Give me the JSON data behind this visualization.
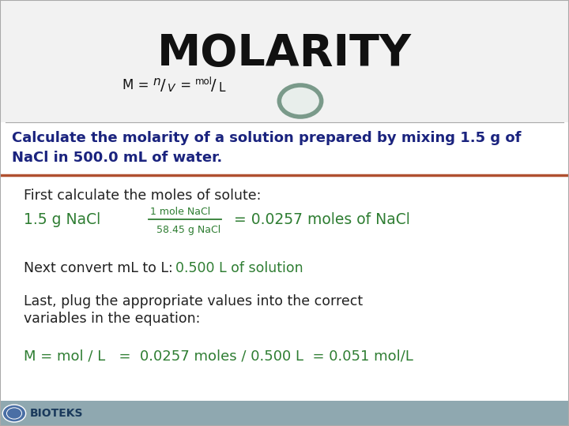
{
  "title": "MOLARITY",
  "subtitle_m": "M = ",
  "subtitle_n": "n",
  "subtitle_slash1": "/",
  "subtitle_v": "V",
  "subtitle_eq": " = ",
  "subtitle_mol": "mol",
  "subtitle_slash2": "/",
  "subtitle_l": "L",
  "question_line1": "Calculate the molarity of a solution prepared by mixing 1.5 g of",
  "question_line2": "NaCl in 500.0 mL of water.",
  "step1_black": "First calculate the moles of solute:",
  "step1_green_prefix": "1.5 g NaCl ",
  "step1_fraction_num": "1 mole NaCl",
  "step1_fraction_den": "58.45 g NaCl",
  "step1_green_suffix": "  = 0.0257 moles of NaCl",
  "step2_black": "Next convert mL to L:    ",
  "step2_green": "0.500 L of solution",
  "step3_black1": "Last, plug the appropriate values into the correct",
  "step3_black2": "variables in the equation:",
  "step4_green": "M = mol / L   =  0.0257 moles / 0.500 L  = 0.051 mol/L",
  "bg_color": "#ffffff",
  "header_bg": "#f0f0f0",
  "title_color": "#111111",
  "subtitle_color": "#111111",
  "question_color": "#1a237e",
  "black_text_color": "#222222",
  "green_color": "#2e7d32",
  "divider_top_color": "#aaaaaa",
  "divider_bottom_color": "#b05030",
  "footer_bg": "#8fa8b0",
  "footer_text_color": "#1a3a5c",
  "footer_text": "BIOTEKS",
  "ring_color": "#7a9a8a"
}
